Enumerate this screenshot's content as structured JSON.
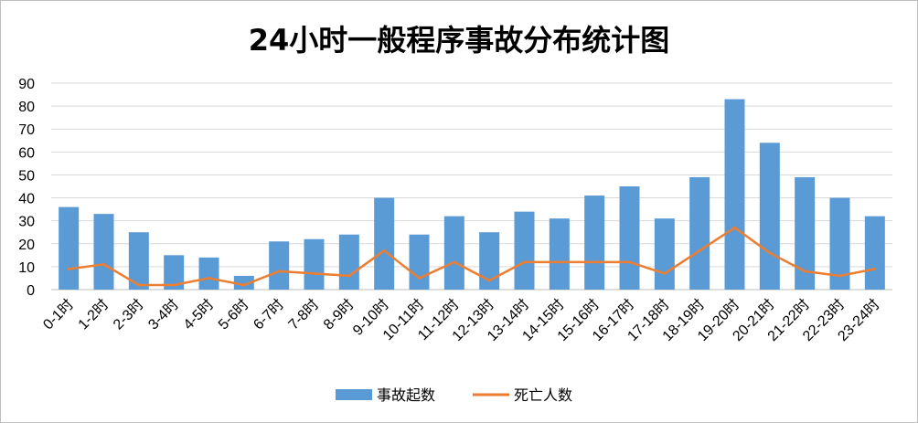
{
  "chart_data": {
    "type": "bar",
    "title": "24小时一般程序事故分布统计图",
    "xlabel": "",
    "ylabel": "",
    "ylim": [
      0,
      90
    ],
    "yticks": [
      0,
      10,
      20,
      30,
      40,
      50,
      60,
      70,
      80,
      90
    ],
    "grid": true,
    "legend_position": "bottom",
    "categories": [
      "0-1时",
      "1-2时",
      "2-3时",
      "3-4时",
      "4-5时",
      "5-6时",
      "6-7时",
      "7-8时",
      "8-9时",
      "9-10时",
      "10-11时",
      "11-12时",
      "12-13时",
      "13-14时",
      "14-15时",
      "15-16时",
      "16-17时",
      "17-18时",
      "18-19时",
      "19-20时",
      "20-21时",
      "21-22时",
      "22-23时",
      "23-24时"
    ],
    "series": [
      {
        "name": "事故起数",
        "type": "bar",
        "color": "#5b9bd5",
        "values": [
          36,
          33,
          25,
          15,
          14,
          6,
          21,
          22,
          24,
          40,
          24,
          32,
          25,
          34,
          31,
          41,
          45,
          31,
          49,
          83,
          64,
          49,
          40,
          32
        ]
      },
      {
        "name": "死亡人数",
        "type": "line",
        "color": "#ed7d31",
        "values": [
          9,
          11,
          2,
          2,
          5,
          2,
          8,
          7,
          6,
          17,
          5,
          12,
          4,
          12,
          12,
          12,
          12,
          7,
          17,
          27,
          16,
          8,
          6,
          9
        ]
      }
    ]
  }
}
